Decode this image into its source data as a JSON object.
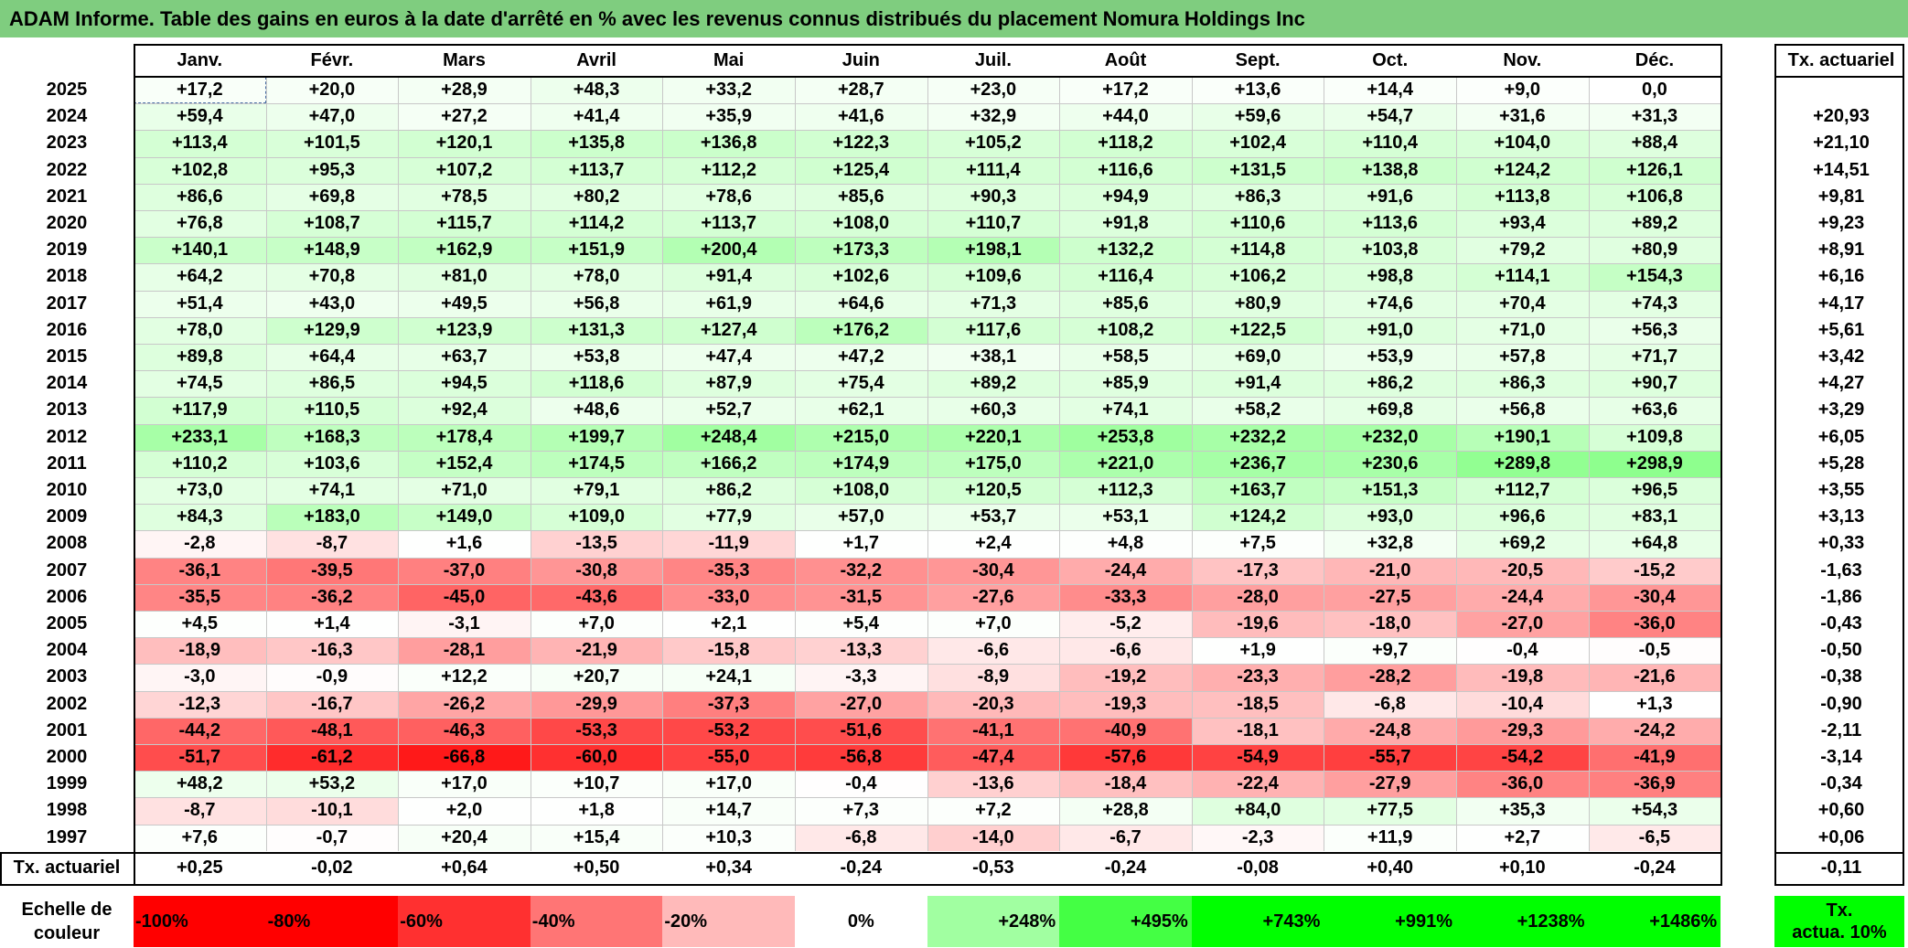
{
  "chart_data": {
    "type": "table",
    "title": "ADAM Informe. Table des gains en euros à la date d'arrêté en % avec les revenus connus distribués du placement Nomura Holdings Inc",
    "months": [
      "Janv.",
      "Févr.",
      "Mars",
      "Avril",
      "Mai",
      "Juin",
      "Juil.",
      "Août",
      "Sept.",
      "Oct.",
      "Nov.",
      "Déc."
    ],
    "rate_header": "Tx. actuariel",
    "rows": [
      {
        "year": "2025",
        "values": [
          "+17,2",
          "+20,0",
          "+28,9",
          "+48,3",
          "+33,2",
          "+28,7",
          "+23,0",
          "+17,2",
          "+13,6",
          "+14,4",
          "+9,0",
          "0,0"
        ],
        "rate": ""
      },
      {
        "year": "2024",
        "values": [
          "+59,4",
          "+47,0",
          "+27,2",
          "+41,4",
          "+35,9",
          "+41,6",
          "+32,9",
          "+44,0",
          "+59,6",
          "+54,7",
          "+31,6",
          "+31,3"
        ],
        "rate": "+20,93"
      },
      {
        "year": "2023",
        "values": [
          "+113,4",
          "+101,5",
          "+120,1",
          "+135,8",
          "+136,8",
          "+122,3",
          "+105,2",
          "+118,2",
          "+102,4",
          "+110,4",
          "+104,0",
          "+88,4"
        ],
        "rate": "+21,10"
      },
      {
        "year": "2022",
        "values": [
          "+102,8",
          "+95,3",
          "+107,2",
          "+113,7",
          "+112,2",
          "+125,4",
          "+111,4",
          "+116,6",
          "+131,5",
          "+138,8",
          "+124,2",
          "+126,1"
        ],
        "rate": "+14,51"
      },
      {
        "year": "2021",
        "values": [
          "+86,6",
          "+69,8",
          "+78,5",
          "+80,2",
          "+78,6",
          "+85,6",
          "+90,3",
          "+94,9",
          "+86,3",
          "+91,6",
          "+113,8",
          "+106,8"
        ],
        "rate": "+9,81"
      },
      {
        "year": "2020",
        "values": [
          "+76,8",
          "+108,7",
          "+115,7",
          "+114,2",
          "+113,7",
          "+108,0",
          "+110,7",
          "+91,8",
          "+110,6",
          "+113,6",
          "+93,4",
          "+89,2"
        ],
        "rate": "+9,23"
      },
      {
        "year": "2019",
        "values": [
          "+140,1",
          "+148,9",
          "+162,9",
          "+151,9",
          "+200,4",
          "+173,3",
          "+198,1",
          "+132,2",
          "+114,8",
          "+103,8",
          "+79,2",
          "+80,9"
        ],
        "rate": "+8,91"
      },
      {
        "year": "2018",
        "values": [
          "+64,2",
          "+70,8",
          "+81,0",
          "+78,0",
          "+91,4",
          "+102,6",
          "+109,6",
          "+116,4",
          "+106,2",
          "+98,8",
          "+114,1",
          "+154,3"
        ],
        "rate": "+6,16"
      },
      {
        "year": "2017",
        "values": [
          "+51,4",
          "+43,0",
          "+49,5",
          "+56,8",
          "+61,9",
          "+64,6",
          "+71,3",
          "+85,6",
          "+80,9",
          "+74,6",
          "+70,4",
          "+74,3"
        ],
        "rate": "+4,17"
      },
      {
        "year": "2016",
        "values": [
          "+78,0",
          "+129,9",
          "+123,9",
          "+131,3",
          "+127,4",
          "+176,2",
          "+117,6",
          "+108,2",
          "+122,5",
          "+91,0",
          "+71,0",
          "+56,3"
        ],
        "rate": "+5,61"
      },
      {
        "year": "2015",
        "values": [
          "+89,8",
          "+64,4",
          "+63,7",
          "+53,8",
          "+47,4",
          "+47,2",
          "+38,1",
          "+58,5",
          "+69,0",
          "+53,9",
          "+57,8",
          "+71,7"
        ],
        "rate": "+3,42"
      },
      {
        "year": "2014",
        "values": [
          "+74,5",
          "+86,5",
          "+94,5",
          "+118,6",
          "+87,9",
          "+75,4",
          "+89,2",
          "+85,9",
          "+91,4",
          "+86,2",
          "+86,3",
          "+90,7"
        ],
        "rate": "+4,27"
      },
      {
        "year": "2013",
        "values": [
          "+117,9",
          "+110,5",
          "+92,4",
          "+48,6",
          "+52,7",
          "+62,1",
          "+60,3",
          "+74,1",
          "+58,2",
          "+69,8",
          "+56,8",
          "+63,6"
        ],
        "rate": "+3,29"
      },
      {
        "year": "2012",
        "values": [
          "+233,1",
          "+168,3",
          "+178,4",
          "+199,7",
          "+248,4",
          "+215,0",
          "+220,1",
          "+253,8",
          "+232,2",
          "+232,0",
          "+190,1",
          "+109,8"
        ],
        "rate": "+6,05"
      },
      {
        "year": "2011",
        "values": [
          "+110,2",
          "+103,6",
          "+152,4",
          "+174,5",
          "+166,2",
          "+174,9",
          "+175,0",
          "+221,0",
          "+236,7",
          "+230,6",
          "+289,8",
          "+298,9"
        ],
        "rate": "+5,28"
      },
      {
        "year": "2010",
        "values": [
          "+73,0",
          "+74,1",
          "+71,0",
          "+79,1",
          "+86,2",
          "+108,0",
          "+120,5",
          "+112,3",
          "+163,7",
          "+151,3",
          "+112,7",
          "+96,5"
        ],
        "rate": "+3,55"
      },
      {
        "year": "2009",
        "values": [
          "+84,3",
          "+183,0",
          "+149,0",
          "+109,0",
          "+77,9",
          "+57,0",
          "+53,7",
          "+53,1",
          "+124,2",
          "+93,0",
          "+96,6",
          "+83,1"
        ],
        "rate": "+3,13"
      },
      {
        "year": "2008",
        "values": [
          "-2,8",
          "-8,7",
          "+1,6",
          "-13,5",
          "-11,9",
          "+1,7",
          "+2,4",
          "+4,8",
          "+7,5",
          "+32,8",
          "+69,2",
          "+64,8"
        ],
        "rate": "+0,33"
      },
      {
        "year": "2007",
        "values": [
          "-36,1",
          "-39,5",
          "-37,0",
          "-30,8",
          "-35,3",
          "-32,2",
          "-30,4",
          "-24,4",
          "-17,3",
          "-21,0",
          "-20,5",
          "-15,2"
        ],
        "rate": "-1,63"
      },
      {
        "year": "2006",
        "values": [
          "-35,5",
          "-36,2",
          "-45,0",
          "-43,6",
          "-33,0",
          "-31,5",
          "-27,6",
          "-33,3",
          "-28,0",
          "-27,5",
          "-24,4",
          "-30,4"
        ],
        "rate": "-1,86"
      },
      {
        "year": "2005",
        "values": [
          "+4,5",
          "+1,4",
          "-3,1",
          "+7,0",
          "+2,1",
          "+5,4",
          "+7,0",
          "-5,2",
          "-19,6",
          "-18,0",
          "-27,0",
          "-36,0"
        ],
        "rate": "-0,43"
      },
      {
        "year": "2004",
        "values": [
          "-18,9",
          "-16,3",
          "-28,1",
          "-21,9",
          "-15,8",
          "-13,3",
          "-6,6",
          "-6,6",
          "+1,9",
          "+9,7",
          "-0,4",
          "-0,5"
        ],
        "rate": "-0,50"
      },
      {
        "year": "2003",
        "values": [
          "-3,0",
          "-0,9",
          "+12,2",
          "+20,7",
          "+24,1",
          "-3,3",
          "-8,9",
          "-19,2",
          "-23,3",
          "-28,2",
          "-19,8",
          "-21,6"
        ],
        "rate": "-0,38"
      },
      {
        "year": "2002",
        "values": [
          "-12,3",
          "-16,7",
          "-26,2",
          "-29,9",
          "-37,3",
          "-27,0",
          "-20,3",
          "-19,3",
          "-18,5",
          "-6,8",
          "-10,4",
          "+1,3"
        ],
        "rate": "-0,90"
      },
      {
        "year": "2001",
        "values": [
          "-44,2",
          "-48,1",
          "-46,3",
          "-53,3",
          "-53,2",
          "-51,6",
          "-41,1",
          "-40,9",
          "-18,1",
          "-24,8",
          "-29,3",
          "-24,2"
        ],
        "rate": "-2,11"
      },
      {
        "year": "2000",
        "values": [
          "-51,7",
          "-61,2",
          "-66,8",
          "-60,0",
          "-55,0",
          "-56,8",
          "-47,4",
          "-57,6",
          "-54,9",
          "-55,7",
          "-54,2",
          "-41,9"
        ],
        "rate": "-3,14"
      },
      {
        "year": "1999",
        "values": [
          "+48,2",
          "+53,2",
          "+17,0",
          "+10,7",
          "+17,0",
          "-0,4",
          "-13,6",
          "-18,4",
          "-22,4",
          "-27,9",
          "-36,0",
          "-36,9"
        ],
        "rate": "-0,34"
      },
      {
        "year": "1998",
        "values": [
          "-8,7",
          "-10,1",
          "+2,0",
          "+1,8",
          "+14,7",
          "+7,3",
          "+7,2",
          "+28,8",
          "+84,0",
          "+77,5",
          "+35,3",
          "+54,3"
        ],
        "rate": "+0,60"
      },
      {
        "year": "1997",
        "values": [
          "+7,6",
          "-0,7",
          "+20,4",
          "+15,4",
          "+10,3",
          "-6,8",
          "-14,0",
          "-6,7",
          "-2,3",
          "+11,9",
          "+2,7",
          "-6,5"
        ],
        "rate": "+0,06"
      }
    ],
    "summary": {
      "label": "Tx. actuariel",
      "values": [
        "+0,25",
        "-0,02",
        "+0,64",
        "+0,50",
        "+0,34",
        "-0,24",
        "-0,53",
        "-0,24",
        "-0,08",
        "+0,40",
        "+0,10",
        "-0,24"
      ],
      "rate": "-0,11"
    },
    "scale": {
      "label_line1": "Echelle de",
      "label_line2": "couleur",
      "items": [
        "-100%",
        "-80%",
        "-60%",
        "-40%",
        "-20%",
        "0%",
        "+248%",
        "+495%",
        "+743%",
        "+991%",
        "+1238%",
        "+1486%"
      ],
      "rate_line1": "Tx.",
      "rate_line2": "actua. 10%"
    },
    "colors": {
      "title_bg": "#7fcd7f",
      "neg_max": "#ff0000",
      "pos_max": "#00ff00",
      "neutral": "#ffffff"
    },
    "color_scale_range": [
      -100,
      1486
    ]
  }
}
